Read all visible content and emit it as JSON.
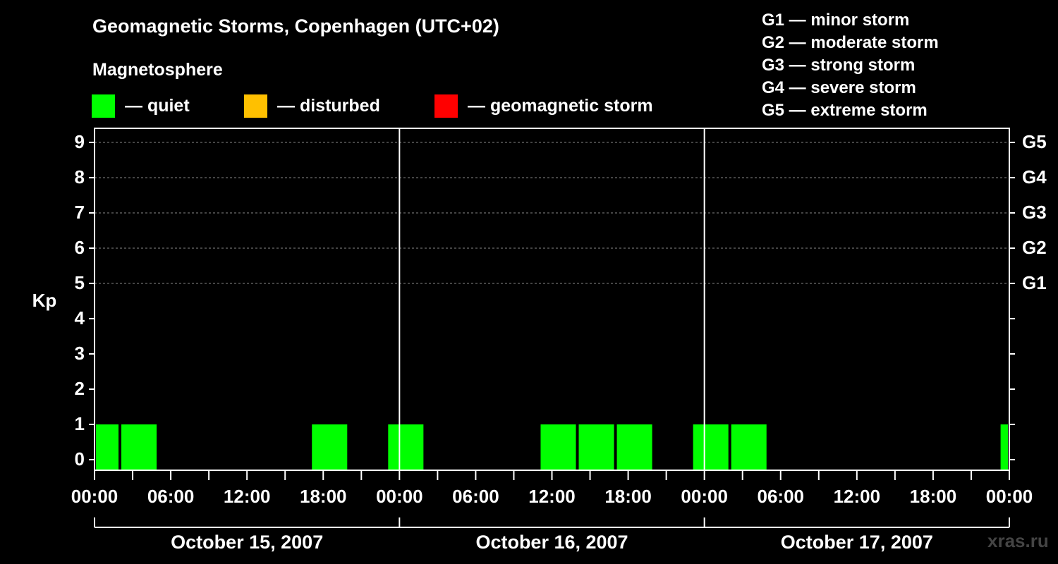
{
  "colors": {
    "quiet": "#00ff00",
    "disturbed": "#ffc000",
    "storm": "#ff0000",
    "background": "#000000",
    "grid": "#888888"
  },
  "chart_data": {
    "type": "bar",
    "title": "Geomagnetic Storms, Copenhagen (UTC+02)",
    "subtitle": "Magnetosphere",
    "ylabel": "Kp",
    "ylim": [
      0,
      9
    ],
    "yticks": [
      "0",
      "1",
      "2",
      "3",
      "4",
      "5",
      "6",
      "7",
      "8",
      "9"
    ],
    "x_range_hours": [
      0,
      72
    ],
    "xtick_labels": [
      "00:00",
      "06:00",
      "12:00",
      "18:00",
      "00:00",
      "06:00",
      "12:00",
      "18:00",
      "00:00",
      "06:00",
      "12:00",
      "18:00",
      "00:00"
    ],
    "days": [
      "October 15, 2007",
      "October 16, 2007",
      "October 17, 2007"
    ],
    "g_levels": [
      {
        "kp": 5,
        "label": "G1"
      },
      {
        "kp": 6,
        "label": "G2"
      },
      {
        "kp": 7,
        "label": "G3"
      },
      {
        "kp": 8,
        "label": "G4"
      },
      {
        "kp": 9,
        "label": "G5"
      }
    ],
    "legend": {
      "quiet": "— quiet",
      "disturbed": "— disturbed",
      "storm": "— geomagnetic storm"
    },
    "g_legend": [
      "G1 — minor storm",
      "G2 — moderate storm",
      "G3 — strong storm",
      "G4 — severe storm",
      "G5 — extreme storm"
    ],
    "series": [
      {
        "name": "Kp",
        "bars": [
          {
            "start_h": 0,
            "end_h": 2,
            "kp": 1,
            "status": "quiet"
          },
          {
            "start_h": 2,
            "end_h": 5,
            "kp": 1,
            "status": "quiet"
          },
          {
            "start_h": 17,
            "end_h": 20,
            "kp": 1,
            "status": "quiet"
          },
          {
            "start_h": 23,
            "end_h": 26,
            "kp": 1,
            "status": "quiet"
          },
          {
            "start_h": 35,
            "end_h": 38,
            "kp": 1,
            "status": "quiet"
          },
          {
            "start_h": 38,
            "end_h": 41,
            "kp": 1,
            "status": "quiet"
          },
          {
            "start_h": 41,
            "end_h": 44,
            "kp": 1,
            "status": "quiet"
          },
          {
            "start_h": 47,
            "end_h": 50,
            "kp": 1,
            "status": "quiet"
          },
          {
            "start_h": 50,
            "end_h": 53,
            "kp": 1,
            "status": "quiet"
          },
          {
            "start_h": 71.2,
            "end_h": 72,
            "kp": 1,
            "status": "quiet"
          }
        ]
      }
    ]
  },
  "watermark": "xras.ru"
}
